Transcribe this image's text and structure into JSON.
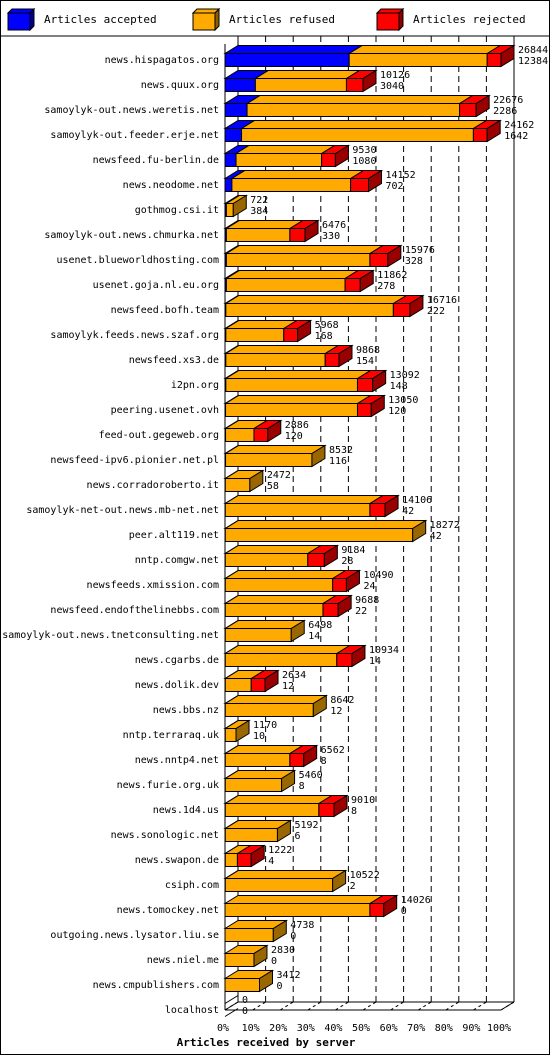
{
  "chart_data": {
    "type": "bar",
    "orientation": "horizontal",
    "stacked": true,
    "three_d": true,
    "xlabel": "Articles received by server",
    "ylabel": "",
    "xlim": [
      0,
      100
    ],
    "x_unit": "%",
    "x_ticks": [
      "0%",
      "10%",
      "20%",
      "30%",
      "40%",
      "50%",
      "60%",
      "70%",
      "80%",
      "90%",
      "100%"
    ],
    "legend_position": "top",
    "series": [
      {
        "name": "Articles accepted",
        "color": "#0000ff"
      },
      {
        "name": "Articles refused",
        "color": "#ffaa00"
      },
      {
        "name": "Articles rejected",
        "color": "#ff0000"
      }
    ],
    "rows": [
      {
        "server": "news.hispagatos.org",
        "total_label": "26844",
        "refused_label": "12384",
        "accepted_pct": 45.0,
        "refused_pct": 50.0,
        "rejected_pct": 5.0
      },
      {
        "server": "news.quux.org",
        "total_label": "10126",
        "refused_label": "3040",
        "accepted_pct": 11.0,
        "refused_pct": 33.0,
        "rejected_pct": 6.0
      },
      {
        "server": "samoylyk-out.news.weretis.net",
        "total_label": "22676",
        "refused_label": "2286",
        "accepted_pct": 8.0,
        "refused_pct": 77.0,
        "rejected_pct": 6.0
      },
      {
        "server": "samoylyk-out.feeder.erje.net",
        "total_label": "24162",
        "refused_label": "1642",
        "accepted_pct": 6.0,
        "refused_pct": 84.0,
        "rejected_pct": 5.0
      },
      {
        "server": "newsfeed.fu-berlin.de",
        "total_label": "9530",
        "refused_label": "1080",
        "accepted_pct": 4.0,
        "refused_pct": 31.0,
        "rejected_pct": 5.0
      },
      {
        "server": "news.neodome.net",
        "total_label": "14152",
        "refused_label": "702",
        "accepted_pct": 2.5,
        "refused_pct": 43.0,
        "rejected_pct": 6.5
      },
      {
        "server": "gothmog.csi.it",
        "total_label": "722",
        "refused_label": "384",
        "accepted_pct": 0.5,
        "refused_pct": 2.5,
        "rejected_pct": 0
      },
      {
        "server": "samoylyk-out.news.chmurka.net",
        "total_label": "6476",
        "refused_label": "330",
        "accepted_pct": 0.5,
        "refused_pct": 23.0,
        "rejected_pct": 5.5
      },
      {
        "server": "usenet.blueworldhosting.com",
        "total_label": "15976",
        "refused_label": "328",
        "accepted_pct": 0.5,
        "refused_pct": 52.0,
        "rejected_pct": 6.5
      },
      {
        "server": "usenet.goja.nl.eu.org",
        "total_label": "11862",
        "refused_label": "278",
        "accepted_pct": 0.5,
        "refused_pct": 43.0,
        "rejected_pct": 5.5
      },
      {
        "server": "newsfeed.bofh.team",
        "total_label": "16716",
        "refused_label": "222",
        "accepted_pct": 0.3,
        "refused_pct": 60.7,
        "rejected_pct": 6.0
      },
      {
        "server": "samoylyk.feeds.news.szaf.org",
        "total_label": "5968",
        "refused_label": "168",
        "accepted_pct": 0.3,
        "refused_pct": 21.0,
        "rejected_pct": 5.0
      },
      {
        "server": "newsfeed.xs3.de",
        "total_label": "9868",
        "refused_label": "154",
        "accepted_pct": 0.3,
        "refused_pct": 36.0,
        "rejected_pct": 5.0
      },
      {
        "server": "i2pn.org",
        "total_label": "13092",
        "refused_label": "148",
        "accepted_pct": 0.3,
        "refused_pct": 47.7,
        "rejected_pct": 5.5
      },
      {
        "server": "peering.usenet.ovh",
        "total_label": "13050",
        "refused_label": "120",
        "accepted_pct": 0.2,
        "refused_pct": 47.8,
        "rejected_pct": 5.0
      },
      {
        "server": "feed-out.gegeweb.org",
        "total_label": "2886",
        "refused_label": "120",
        "accepted_pct": 0.2,
        "refused_pct": 10.3,
        "rejected_pct": 5.0
      },
      {
        "server": "newsfeed-ipv6.pionier.net.pl",
        "total_label": "8532",
        "refused_label": "116",
        "accepted_pct": 0.2,
        "refused_pct": 31.3,
        "rejected_pct": 0
      },
      {
        "server": "news.corradoroberto.it",
        "total_label": "2472",
        "refused_label": "58",
        "accepted_pct": 0.1,
        "refused_pct": 8.9,
        "rejected_pct": 0
      },
      {
        "server": "samoylyk-net-out.news.mb-net.net",
        "total_label": "14106",
        "refused_label": "42",
        "accepted_pct": 0.1,
        "refused_pct": 52.4,
        "rejected_pct": 5.5
      },
      {
        "server": "peer.alt119.net",
        "total_label": "18272",
        "refused_label": "42",
        "accepted_pct": 0.1,
        "refused_pct": 67.9,
        "rejected_pct": 0
      },
      {
        "server": "nntp.comgw.net",
        "total_label": "9184",
        "refused_label": "28",
        "accepted_pct": 0.1,
        "refused_pct": 29.9,
        "rejected_pct": 6.0
      },
      {
        "server": "newsfeeds.xmission.com",
        "total_label": "10490",
        "refused_label": "24",
        "accepted_pct": 0.1,
        "refused_pct": 38.9,
        "rejected_pct": 5.0
      },
      {
        "server": "newsfeed.endofthelinebbs.com",
        "total_label": "9688",
        "refused_label": "22",
        "accepted_pct": 0.1,
        "refused_pct": 35.4,
        "rejected_pct": 5.5
      },
      {
        "server": "samoylyk-out.news.tnetconsulting.net",
        "total_label": "6498",
        "refused_label": "14",
        "accepted_pct": 0.1,
        "refused_pct": 23.9,
        "rejected_pct": 0
      },
      {
        "server": "news.cgarbs.de",
        "total_label": "10934",
        "refused_label": "14",
        "accepted_pct": 0.1,
        "refused_pct": 40.4,
        "rejected_pct": 5.5
      },
      {
        "server": "news.dolik.dev",
        "total_label": "2634",
        "refused_label": "12",
        "accepted_pct": 0.1,
        "refused_pct": 9.4,
        "rejected_pct": 5.0
      },
      {
        "server": "news.bbs.nz",
        "total_label": "8642",
        "refused_label": "12",
        "accepted_pct": 0.1,
        "refused_pct": 31.9,
        "rejected_pct": 0
      },
      {
        "server": "nntp.terraraq.uk",
        "total_label": "1170",
        "refused_label": "10",
        "accepted_pct": 0.1,
        "refused_pct": 3.9,
        "rejected_pct": 0
      },
      {
        "server": "news.nntp4.net",
        "total_label": "6562",
        "refused_label": "8",
        "accepted_pct": 0.1,
        "refused_pct": 23.4,
        "rejected_pct": 5.0
      },
      {
        "server": "news.furie.org.uk",
        "total_label": "5460",
        "refused_label": "8",
        "accepted_pct": 0.1,
        "refused_pct": 20.4,
        "rejected_pct": 0
      },
      {
        "server": "news.1d4.us",
        "total_label": "9010",
        "refused_label": "8",
        "accepted_pct": 0.1,
        "refused_pct": 33.9,
        "rejected_pct": 5.5
      },
      {
        "server": "news.sonologic.net",
        "total_label": "5192",
        "refused_label": "6",
        "accepted_pct": 0.1,
        "refused_pct": 18.9,
        "rejected_pct": 0
      },
      {
        "server": "news.swapon.de",
        "total_label": "1222",
        "refused_label": "4",
        "accepted_pct": 0.1,
        "refused_pct": 4.4,
        "rejected_pct": 5.0
      },
      {
        "server": "csiph.com",
        "total_label": "10522",
        "refused_label": "2",
        "accepted_pct": 0.1,
        "refused_pct": 38.9,
        "rejected_pct": 0
      },
      {
        "server": "news.tomockey.net",
        "total_label": "14026",
        "refused_label": "0",
        "accepted_pct": 0,
        "refused_pct": 52.5,
        "rejected_pct": 5.0
      },
      {
        "server": "outgoing.news.lysator.liu.se",
        "total_label": "4738",
        "refused_label": "0",
        "accepted_pct": 0,
        "refused_pct": 17.5,
        "rejected_pct": 0
      },
      {
        "server": "news.niel.me",
        "total_label": "2830",
        "refused_label": "0",
        "accepted_pct": 0,
        "refused_pct": 10.5,
        "rejected_pct": 0
      },
      {
        "server": "news.cmpublishers.com",
        "total_label": "3412",
        "refused_label": "0",
        "accepted_pct": 0,
        "refused_pct": 12.5,
        "rejected_pct": 0
      },
      {
        "server": "localhost",
        "total_label": "0",
        "refused_label": "0",
        "accepted_pct": 0,
        "refused_pct": 0,
        "rejected_pct": 0
      }
    ]
  }
}
